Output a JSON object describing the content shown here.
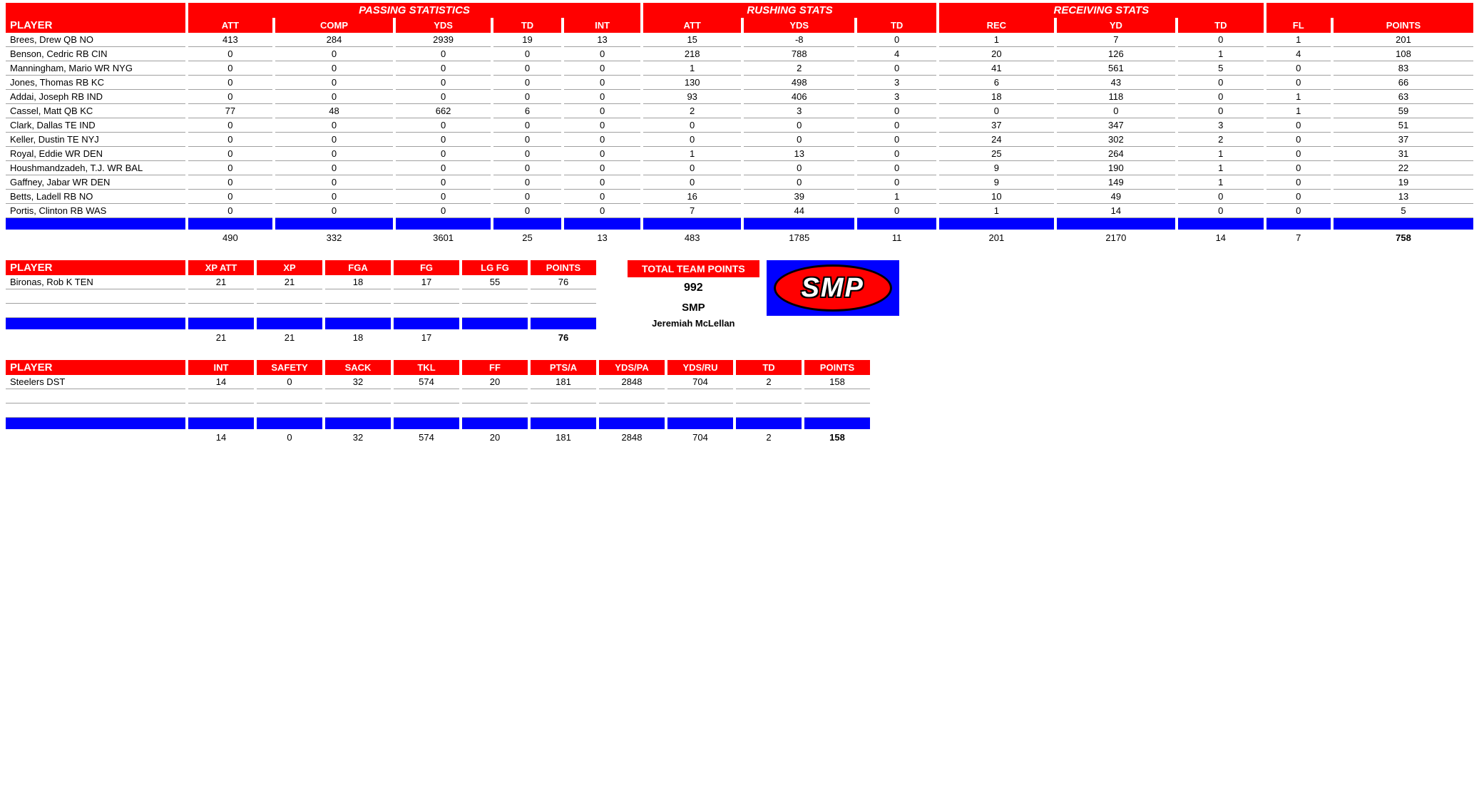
{
  "colors": {
    "header_red": "#ff0000",
    "divider_blue": "#0000ff",
    "text_white": "#ffffff",
    "text_black": "#000000",
    "row_border": "#a0a0a0"
  },
  "offense": {
    "groups": {
      "passing": "PASSING STATISTICS",
      "rushing": "RUSHING STATS",
      "receiving": "RECEIVING STATS"
    },
    "columns": {
      "player": "PLAYER",
      "p_att": "ATT",
      "p_comp": "COMP",
      "p_yds": "YDS",
      "p_td": "TD",
      "p_int": "INT",
      "r_att": "ATT",
      "r_yds": "YDS",
      "r_td": "TD",
      "c_rec": "REC",
      "c_yd": "YD",
      "c_td": "TD",
      "fl": "FL",
      "points": "POINTS"
    },
    "rows": [
      {
        "player": "Brees, Drew QB NO",
        "p_att": "413",
        "p_comp": "284",
        "p_yds": "2939",
        "p_td": "19",
        "p_int": "13",
        "r_att": "15",
        "r_yds": "-8",
        "r_td": "0",
        "c_rec": "1",
        "c_yd": "7",
        "c_td": "0",
        "fl": "1",
        "points": "201"
      },
      {
        "player": "Benson, Cedric RB CIN",
        "p_att": "0",
        "p_comp": "0",
        "p_yds": "0",
        "p_td": "0",
        "p_int": "0",
        "r_att": "218",
        "r_yds": "788",
        "r_td": "4",
        "c_rec": "20",
        "c_yd": "126",
        "c_td": "1",
        "fl": "4",
        "points": "108"
      },
      {
        "player": "Manningham, Mario WR NYG",
        "p_att": "0",
        "p_comp": "0",
        "p_yds": "0",
        "p_td": "0",
        "p_int": "0",
        "r_att": "1",
        "r_yds": "2",
        "r_td": "0",
        "c_rec": "41",
        "c_yd": "561",
        "c_td": "5",
        "fl": "0",
        "points": "83"
      },
      {
        "player": "Jones, Thomas RB KC",
        "p_att": "0",
        "p_comp": "0",
        "p_yds": "0",
        "p_td": "0",
        "p_int": "0",
        "r_att": "130",
        "r_yds": "498",
        "r_td": "3",
        "c_rec": "6",
        "c_yd": "43",
        "c_td": "0",
        "fl": "0",
        "points": "66"
      },
      {
        "player": "Addai, Joseph RB IND",
        "p_att": "0",
        "p_comp": "0",
        "p_yds": "0",
        "p_td": "0",
        "p_int": "0",
        "r_att": "93",
        "r_yds": "406",
        "r_td": "3",
        "c_rec": "18",
        "c_yd": "118",
        "c_td": "0",
        "fl": "1",
        "points": "63"
      },
      {
        "player": "Cassel, Matt QB KC",
        "p_att": "77",
        "p_comp": "48",
        "p_yds": "662",
        "p_td": "6",
        "p_int": "0",
        "r_att": "2",
        "r_yds": "3",
        "r_td": "0",
        "c_rec": "0",
        "c_yd": "0",
        "c_td": "0",
        "fl": "1",
        "points": "59"
      },
      {
        "player": "Clark, Dallas TE IND",
        "p_att": "0",
        "p_comp": "0",
        "p_yds": "0",
        "p_td": "0",
        "p_int": "0",
        "r_att": "0",
        "r_yds": "0",
        "r_td": "0",
        "c_rec": "37",
        "c_yd": "347",
        "c_td": "3",
        "fl": "0",
        "points": "51"
      },
      {
        "player": "Keller, Dustin TE NYJ",
        "p_att": "0",
        "p_comp": "0",
        "p_yds": "0",
        "p_td": "0",
        "p_int": "0",
        "r_att": "0",
        "r_yds": "0",
        "r_td": "0",
        "c_rec": "24",
        "c_yd": "302",
        "c_td": "2",
        "fl": "0",
        "points": "37"
      },
      {
        "player": "Royal, Eddie WR DEN",
        "p_att": "0",
        "p_comp": "0",
        "p_yds": "0",
        "p_td": "0",
        "p_int": "0",
        "r_att": "1",
        "r_yds": "13",
        "r_td": "0",
        "c_rec": "25",
        "c_yd": "264",
        "c_td": "1",
        "fl": "0",
        "points": "31"
      },
      {
        "player": "Houshmandzadeh, T.J. WR BAL",
        "p_att": "0",
        "p_comp": "0",
        "p_yds": "0",
        "p_td": "0",
        "p_int": "0",
        "r_att": "0",
        "r_yds": "0",
        "r_td": "0",
        "c_rec": "9",
        "c_yd": "190",
        "c_td": "1",
        "fl": "0",
        "points": "22"
      },
      {
        "player": "Gaffney, Jabar WR DEN",
        "p_att": "0",
        "p_comp": "0",
        "p_yds": "0",
        "p_td": "0",
        "p_int": "0",
        "r_att": "0",
        "r_yds": "0",
        "r_td": "0",
        "c_rec": "9",
        "c_yd": "149",
        "c_td": "1",
        "fl": "0",
        "points": "19"
      },
      {
        "player": "Betts, Ladell RB NO",
        "p_att": "0",
        "p_comp": "0",
        "p_yds": "0",
        "p_td": "0",
        "p_int": "0",
        "r_att": "16",
        "r_yds": "39",
        "r_td": "1",
        "c_rec": "10",
        "c_yd": "49",
        "c_td": "0",
        "fl": "0",
        "points": "13"
      },
      {
        "player": "Portis, Clinton RB WAS",
        "p_att": "0",
        "p_comp": "0",
        "p_yds": "0",
        "p_td": "0",
        "p_int": "0",
        "r_att": "7",
        "r_yds": "44",
        "r_td": "0",
        "c_rec": "1",
        "c_yd": "14",
        "c_td": "0",
        "fl": "0",
        "points": "5"
      }
    ],
    "totals": {
      "p_att": "490",
      "p_comp": "332",
      "p_yds": "3601",
      "p_td": "25",
      "p_int": "13",
      "r_att": "483",
      "r_yds": "1785",
      "r_td": "11",
      "c_rec": "201",
      "c_yd": "2170",
      "c_td": "14",
      "fl": "7",
      "points": "758"
    }
  },
  "kicking": {
    "columns": {
      "player": "PLAYER",
      "xpatt": "XP ATT",
      "xp": "XP",
      "fga": "FGA",
      "fg": "FG",
      "lgfg": "LG FG",
      "points": "POINTS"
    },
    "rows": [
      {
        "player": "Bironas, Rob K TEN",
        "xpatt": "21",
        "xp": "21",
        "fga": "18",
        "fg": "17",
        "lgfg": "55",
        "points": "76"
      }
    ],
    "totals": {
      "xpatt": "21",
      "xp": "21",
      "fga": "18",
      "fg": "17",
      "lgfg": "",
      "points": "76"
    }
  },
  "defense": {
    "columns": {
      "player": "PLAYER",
      "int": "INT",
      "safety": "SAFETY",
      "sack": "SACK",
      "tkl": "TKL",
      "ff": "FF",
      "ptsa": "PTS/A",
      "ydspa": "YDS/PA",
      "ydsru": "YDS/RU",
      "td": "TD",
      "points": "POINTS"
    },
    "rows": [
      {
        "player": "Steelers DST",
        "int": "14",
        "safety": "0",
        "sack": "32",
        "tkl": "574",
        "ff": "20",
        "ptsa": "181",
        "ydspa": "2848",
        "ydsru": "704",
        "td": "2",
        "points": "158"
      }
    ],
    "totals": {
      "int": "14",
      "safety": "0",
      "sack": "32",
      "tkl": "574",
      "ff": "20",
      "ptsa": "181",
      "ydspa": "2848",
      "ydsru": "704",
      "td": "2",
      "points": "158"
    }
  },
  "team": {
    "points_label": "TOTAL TEAM POINTS",
    "points": "992",
    "name": "SMP",
    "owner": "Jeremiah McLellan",
    "logo_text": "SMP"
  }
}
